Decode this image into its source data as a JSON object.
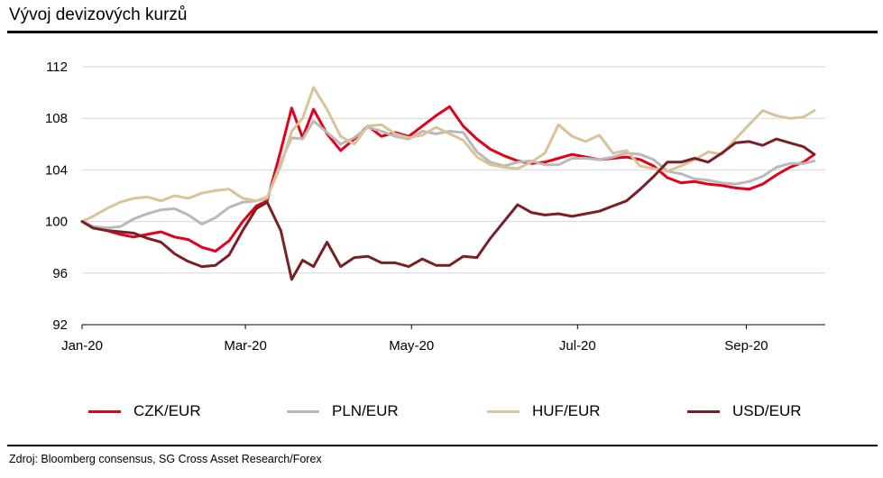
{
  "title": "Vývoj devizových kurzů",
  "source": "Zdroj: Bloomberg consensus, SG Cross Asset Research/Forex",
  "chart_data": {
    "type": "line",
    "xlabel": "",
    "ylabel": "",
    "ylim": [
      92,
      112
    ],
    "yticks": [
      92,
      96,
      100,
      104,
      108,
      112
    ],
    "xlim": [
      "2020-01-01",
      "2020-09-30"
    ],
    "xticks": [
      {
        "date": "2020-01-01",
        "label": "Jan-20"
      },
      {
        "date": "2020-03-01",
        "label": "Mar-20"
      },
      {
        "date": "2020-05-01",
        "label": "May-20"
      },
      {
        "date": "2020-07-01",
        "label": "Jul-20"
      },
      {
        "date": "2020-09-01",
        "label": "Sep-20"
      }
    ],
    "grid": "horizontal",
    "legend": "bottom",
    "series": [
      {
        "name": "CZK/EUR",
        "color": "#e2001a",
        "x": [
          "2020-01-01",
          "2020-01-05",
          "2020-01-10",
          "2020-01-15",
          "2020-01-20",
          "2020-01-25",
          "2020-01-30",
          "2020-02-04",
          "2020-02-09",
          "2020-02-14",
          "2020-02-19",
          "2020-02-24",
          "2020-02-29",
          "2020-03-05",
          "2020-03-09",
          "2020-03-14",
          "2020-03-18",
          "2020-03-22",
          "2020-03-26",
          "2020-03-31",
          "2020-04-05",
          "2020-04-10",
          "2020-04-15",
          "2020-04-20",
          "2020-04-25",
          "2020-04-30",
          "2020-05-05",
          "2020-05-10",
          "2020-05-15",
          "2020-05-20",
          "2020-05-25",
          "2020-05-30",
          "2020-06-04",
          "2020-06-09",
          "2020-06-14",
          "2020-06-19",
          "2020-06-24",
          "2020-06-29",
          "2020-07-04",
          "2020-07-09",
          "2020-07-14",
          "2020-07-19",
          "2020-07-24",
          "2020-07-29",
          "2020-08-03",
          "2020-08-08",
          "2020-08-13",
          "2020-08-18",
          "2020-08-23",
          "2020-08-28",
          "2020-09-02",
          "2020-09-07",
          "2020-09-12",
          "2020-09-17",
          "2020-09-22",
          "2020-09-26"
        ],
        "y": [
          100.0,
          99.6,
          99.3,
          99.0,
          98.8,
          99.0,
          99.2,
          98.8,
          98.6,
          98.0,
          97.7,
          98.5,
          100.0,
          101.2,
          101.6,
          105.5,
          108.8,
          106.5,
          108.7,
          106.8,
          105.5,
          106.4,
          107.4,
          106.6,
          106.9,
          106.6,
          107.4,
          108.2,
          108.9,
          107.4,
          106.4,
          105.6,
          105.1,
          104.7,
          104.5,
          104.6,
          104.9,
          105.2,
          105.0,
          104.8,
          104.9,
          105.0,
          104.8,
          104.3,
          103.4,
          103.0,
          103.1,
          102.9,
          102.8,
          102.6,
          102.5,
          102.9,
          103.6,
          104.2,
          104.6,
          105.2
        ]
      },
      {
        "name": "PLN/EUR",
        "color": "#b9b9b9",
        "x": [
          "2020-01-01",
          "2020-01-05",
          "2020-01-10",
          "2020-01-15",
          "2020-01-20",
          "2020-01-25",
          "2020-01-30",
          "2020-02-04",
          "2020-02-09",
          "2020-02-14",
          "2020-02-19",
          "2020-02-24",
          "2020-02-29",
          "2020-03-05",
          "2020-03-09",
          "2020-03-14",
          "2020-03-18",
          "2020-03-22",
          "2020-03-26",
          "2020-03-31",
          "2020-04-05",
          "2020-04-10",
          "2020-04-15",
          "2020-04-20",
          "2020-04-25",
          "2020-04-30",
          "2020-05-05",
          "2020-05-10",
          "2020-05-15",
          "2020-05-20",
          "2020-05-25",
          "2020-05-30",
          "2020-06-04",
          "2020-06-09",
          "2020-06-14",
          "2020-06-19",
          "2020-06-24",
          "2020-06-29",
          "2020-07-04",
          "2020-07-09",
          "2020-07-14",
          "2020-07-19",
          "2020-07-24",
          "2020-07-29",
          "2020-08-03",
          "2020-08-08",
          "2020-08-13",
          "2020-08-18",
          "2020-08-23",
          "2020-08-28",
          "2020-09-02",
          "2020-09-07",
          "2020-09-12",
          "2020-09-17",
          "2020-09-22",
          "2020-09-26"
        ],
        "y": [
          100.0,
          99.6,
          99.5,
          99.6,
          100.2,
          100.6,
          100.9,
          101.0,
          100.5,
          99.8,
          100.3,
          101.1,
          101.5,
          101.6,
          101.8,
          104.6,
          106.5,
          106.4,
          107.8,
          106.9,
          106.0,
          106.5,
          107.3,
          107.0,
          106.6,
          106.4,
          107.0,
          106.8,
          107.0,
          106.9,
          105.4,
          104.6,
          104.3,
          104.6,
          104.7,
          104.4,
          104.4,
          104.9,
          104.9,
          104.8,
          105.0,
          105.3,
          105.2,
          104.8,
          103.9,
          103.7,
          103.3,
          103.2,
          103.0,
          102.9,
          103.1,
          103.5,
          104.2,
          104.5,
          104.5,
          104.7
        ]
      },
      {
        "name": "HUF/EUR",
        "color": "#d9c49a",
        "x": [
          "2020-01-01",
          "2020-01-05",
          "2020-01-10",
          "2020-01-15",
          "2020-01-20",
          "2020-01-25",
          "2020-01-30",
          "2020-02-04",
          "2020-02-09",
          "2020-02-14",
          "2020-02-19",
          "2020-02-24",
          "2020-02-29",
          "2020-03-05",
          "2020-03-09",
          "2020-03-14",
          "2020-03-18",
          "2020-03-22",
          "2020-03-26",
          "2020-03-31",
          "2020-04-05",
          "2020-04-10",
          "2020-04-15",
          "2020-04-20",
          "2020-04-25",
          "2020-04-30",
          "2020-05-05",
          "2020-05-10",
          "2020-05-15",
          "2020-05-20",
          "2020-05-25",
          "2020-05-30",
          "2020-06-04",
          "2020-06-09",
          "2020-06-14",
          "2020-06-19",
          "2020-06-24",
          "2020-06-29",
          "2020-07-04",
          "2020-07-09",
          "2020-07-14",
          "2020-07-19",
          "2020-07-24",
          "2020-07-29",
          "2020-08-03",
          "2020-08-08",
          "2020-08-13",
          "2020-08-18",
          "2020-08-23",
          "2020-08-28",
          "2020-09-02",
          "2020-09-07",
          "2020-09-12",
          "2020-09-17",
          "2020-09-22",
          "2020-09-26"
        ],
        "y": [
          100.0,
          100.4,
          101.0,
          101.5,
          101.8,
          101.9,
          101.6,
          102.0,
          101.8,
          102.2,
          102.4,
          102.5,
          101.8,
          101.6,
          101.9,
          104.3,
          107.0,
          108.0,
          110.4,
          108.7,
          106.6,
          106.0,
          107.4,
          107.5,
          106.8,
          106.5,
          106.7,
          107.3,
          106.8,
          106.3,
          105.0,
          104.4,
          104.2,
          104.1,
          104.6,
          105.3,
          107.5,
          106.6,
          106.2,
          106.7,
          105.3,
          105.5,
          104.3,
          104.1,
          103.9,
          104.3,
          104.8,
          105.4,
          105.2,
          106.4,
          107.5,
          108.6,
          108.2,
          108.0,
          108.1,
          108.6
        ]
      },
      {
        "name": "USD/EUR",
        "color": "#7a1f24",
        "x": [
          "2020-01-01",
          "2020-01-05",
          "2020-01-10",
          "2020-01-15",
          "2020-01-20",
          "2020-01-25",
          "2020-01-30",
          "2020-02-04",
          "2020-02-09",
          "2020-02-14",
          "2020-02-19",
          "2020-02-24",
          "2020-02-29",
          "2020-03-05",
          "2020-03-09",
          "2020-03-14",
          "2020-03-18",
          "2020-03-22",
          "2020-03-26",
          "2020-03-31",
          "2020-04-05",
          "2020-04-10",
          "2020-04-15",
          "2020-04-20",
          "2020-04-25",
          "2020-04-30",
          "2020-05-05",
          "2020-05-10",
          "2020-05-15",
          "2020-05-20",
          "2020-05-25",
          "2020-05-30",
          "2020-06-04",
          "2020-06-09",
          "2020-06-14",
          "2020-06-19",
          "2020-06-24",
          "2020-06-29",
          "2020-07-04",
          "2020-07-09",
          "2020-07-14",
          "2020-07-19",
          "2020-07-24",
          "2020-07-29",
          "2020-08-03",
          "2020-08-08",
          "2020-08-13",
          "2020-08-18",
          "2020-08-23",
          "2020-08-28",
          "2020-09-02",
          "2020-09-07",
          "2020-09-12",
          "2020-09-17",
          "2020-09-22",
          "2020-09-26"
        ],
        "y": [
          100.0,
          99.5,
          99.3,
          99.2,
          99.1,
          98.7,
          98.4,
          97.5,
          96.9,
          96.5,
          96.6,
          97.4,
          99.3,
          101.0,
          101.5,
          99.3,
          95.5,
          97.0,
          96.5,
          98.4,
          96.5,
          97.2,
          97.3,
          96.8,
          96.8,
          96.5,
          97.1,
          96.6,
          96.6,
          97.3,
          97.2,
          98.7,
          100.0,
          101.3,
          100.7,
          100.5,
          100.6,
          100.4,
          100.6,
          100.8,
          101.2,
          101.6,
          102.5,
          103.5,
          104.6,
          104.6,
          104.9,
          104.6,
          105.3,
          106.1,
          106.2,
          105.9,
          106.4,
          106.1,
          105.8,
          105.2
        ]
      }
    ]
  }
}
